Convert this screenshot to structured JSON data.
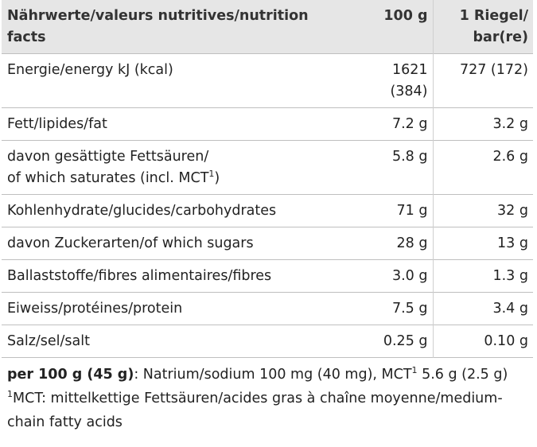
{
  "header": {
    "col_label": "Nährwerte/valeurs nutritives/nutrition facts",
    "col_100g": "100 g",
    "col_bar_line1": "1 Riegel/",
    "col_bar_line2": "bar(re)"
  },
  "rows": [
    {
      "label_line1": "Energie/energy kJ (kcal)",
      "v100_line1": "1621",
      "v100_line2": "(384)",
      "vbar": "727 (172)"
    },
    {
      "label_line1": "Fett/lipides/fat",
      "v100_line1": "7.2 g",
      "vbar": "3.2 g"
    },
    {
      "label_line1": "davon gesättigte Fettsäuren/",
      "label_line2": "of which saturates (incl. MCT",
      "label_sup": "1",
      "label_suffix": ")",
      "v100_line1": "5.8 g",
      "vbar": "2.6 g"
    },
    {
      "label_line1": "Kohlenhydrate/glucides/carbohydrates",
      "v100_line1": "71 g",
      "vbar": "32 g"
    },
    {
      "label_line1": "davon Zuckerarten/of which sugars",
      "v100_line1": "28 g",
      "vbar": "13 g"
    },
    {
      "label_line1": "Ballaststoffe/fibres alimentaires/fibres",
      "v100_line1": "3.0 g",
      "vbar": "1.3 g"
    },
    {
      "label_line1": "Eiweiss/protéines/protein",
      "v100_line1": "7.5 g",
      "vbar": "3.4 g"
    },
    {
      "label_line1": "Salz/sel/salt",
      "v100_line1": "0.25 g",
      "vbar": "0.10 g"
    }
  ],
  "footnote": {
    "bold_part": "per 100 g (45 g)",
    "rest_a": ": Natrium/sodium 100 mg (40 mg), MCT",
    "sup": "1",
    "rest_b": " 5.6 g (2.5 g)",
    "note_sup": "1",
    "note_text": "MCT: mittelkettige Fettsäuren/acides gras à chaîne moyenne/medium-",
    "note_text2": "chain fatty acids"
  }
}
